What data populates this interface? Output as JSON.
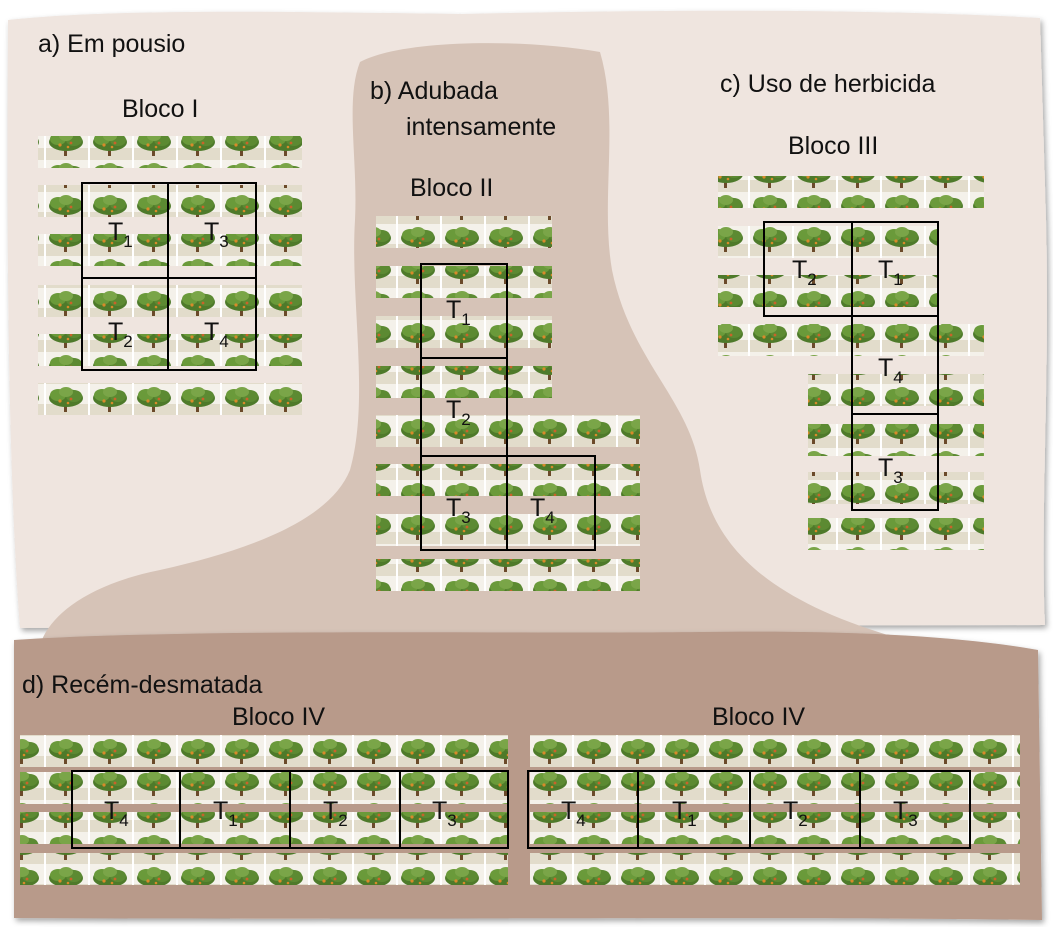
{
  "areas": {
    "a": {
      "label": "a) Em pousio",
      "block": "Bloco I",
      "plots": [
        {
          "t": "T",
          "n": "1"
        },
        {
          "t": "T",
          "n": "3"
        },
        {
          "t": "T",
          "n": "2"
        },
        {
          "t": "T",
          "n": "4"
        }
      ]
    },
    "b": {
      "label_line1": "b) Adubada",
      "label_line2": "intensamente",
      "block": "Bloco II",
      "plots": [
        {
          "t": "T",
          "n": "1"
        },
        {
          "t": "T",
          "n": "2"
        },
        {
          "t": "T",
          "n": "3"
        },
        {
          "t": "T",
          "n": "4"
        }
      ]
    },
    "c": {
      "label": "c) Uso de herbicida",
      "block": "Bloco III",
      "plots": [
        {
          "t": "T",
          "n": "2"
        },
        {
          "t": "T",
          "n": "1"
        },
        {
          "t": "T",
          "n": "4"
        },
        {
          "t": "T",
          "n": "3"
        }
      ]
    },
    "d": {
      "label": "d) Recém-desmatada",
      "left": {
        "block": "Bloco IV",
        "plots": [
          {
            "t": "T",
            "n": "4"
          },
          {
            "t": "T",
            "n": "1"
          },
          {
            "t": "T",
            "n": "2"
          },
          {
            "t": "T",
            "n": "3"
          }
        ]
      },
      "right": {
        "block": "Bloco IV",
        "plots": [
          {
            "t": "T",
            "n": "4"
          },
          {
            "t": "T",
            "n": "1"
          },
          {
            "t": "T",
            "n": "2"
          },
          {
            "t": "T",
            "n": "3"
          }
        ]
      }
    }
  },
  "colors": {
    "land_light": "#efe5df",
    "land_mid": "#d6c3b7",
    "land_dark": "#b89a8a",
    "foliage": "#4e7a2a",
    "foliage_light": "#7aa548",
    "soil": "#e4dccb",
    "trunk": "#6b4a2a",
    "fruit": "#d88a2a"
  },
  "icon": "coffee-shrub-strip-icon"
}
